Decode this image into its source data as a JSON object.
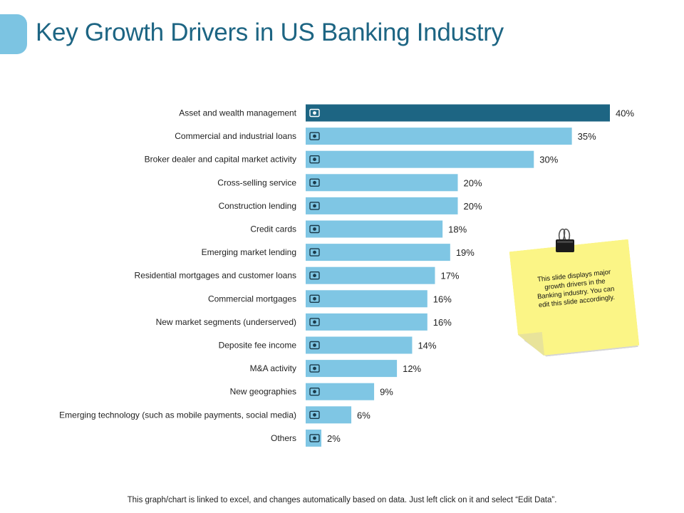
{
  "title": "Key Growth Drivers in US Banking Industry",
  "colors": {
    "title": "#1d6583",
    "accent": "#7cc4e2",
    "bar": "#7fc6e4",
    "highlight_bar": "#1d6583",
    "note": "#fbf586",
    "icon": "#1a3a4a"
  },
  "chart_data": {
    "type": "bar",
    "orientation": "horizontal",
    "categories": [
      "Asset and wealth management",
      "Commercial and industrial loans",
      "Broker dealer and capital market activity",
      "Cross-selling service",
      "Construction lending",
      "Credit cards",
      "Emerging market lending",
      "Residential mortgages and customer loans",
      "Commercial mortgages",
      "New market segments (underserved)",
      "Deposite fee income",
      "M&A activity",
      "New geographies",
      "Emerging technology (such as mobile payments, social media)",
      "Others"
    ],
    "values": [
      40,
      35,
      30,
      20,
      20,
      18,
      19,
      17,
      16,
      16,
      14,
      12,
      9,
      6,
      2
    ],
    "value_labels": [
      "40%",
      "35%",
      "30%",
      "20%",
      "20%",
      "18%",
      "19%",
      "17%",
      "16%",
      "16%",
      "14%",
      "12%",
      "9%",
      "6%",
      "2%"
    ],
    "icons": [
      "wealth-chart-icon",
      "factory-icon",
      "broker-person-icon",
      "shopping-cart-icon",
      "gear-network-icon",
      "credit-card-icon",
      "city-growth-icon",
      "house-icon",
      "office-building-icon",
      "share-nodes-icon",
      "hand-coin-icon",
      "exchange-arrows-icon",
      "globe-network-icon",
      "lightbulb-gear-icon",
      "ellipsis-circle-icon"
    ],
    "highlight_index": 0,
    "xlim": [
      0,
      40
    ],
    "grid": false,
    "legend": "none"
  },
  "note": {
    "text": "This slide displays major growth drivers in the Banking industry. You can edit this slide accordingly."
  },
  "footer": "This graph/chart is linked to excel, and changes automatically based on data. Just left click on it and select “Edit Data”."
}
